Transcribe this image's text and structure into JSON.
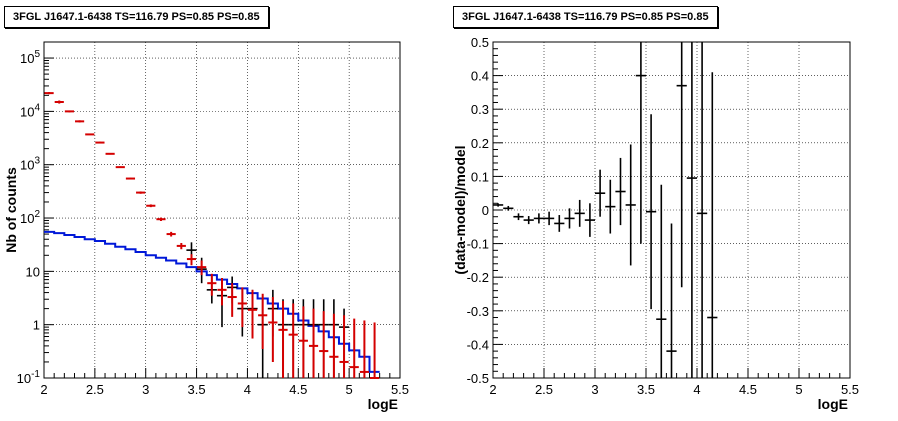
{
  "chart_data": [
    {
      "type": "line",
      "title": "3FGL J1647.1-6438 TS=116.79 PS=0.85 PS=0.85",
      "xlabel": "logE",
      "ylabel": "Nb of counts",
      "xlim": [
        2,
        5.5
      ],
      "ylim": [
        0.1,
        200000
      ],
      "yscale": "log",
      "grid": true,
      "xticks": [
        "2",
        "2.5",
        "3",
        "3.5",
        "4",
        "4.5",
        "5",
        "5.5"
      ],
      "yticks": [
        "10^-1",
        "1",
        "10",
        "10^2",
        "10^3",
        "10^4",
        "10^5"
      ],
      "colors": {
        "data": "#000000",
        "model": "#d40000",
        "background": "#0018d8"
      },
      "bin_edges": [
        2.0,
        2.1,
        2.2,
        2.3,
        2.4,
        2.5,
        2.6,
        2.7,
        2.8,
        2.9,
        3.0,
        3.1,
        3.2,
        3.3,
        3.4,
        3.5,
        3.6,
        3.7,
        3.8,
        3.9,
        4.0,
        4.1,
        4.2,
        4.3,
        4.4,
        4.5,
        4.6,
        4.7,
        4.8,
        4.9,
        5.0,
        5.1,
        5.2,
        5.3
      ],
      "series": [
        {
          "name": "data",
          "x": [
            3.45,
            3.55,
            3.65,
            3.75,
            3.85,
            3.95,
            4.05,
            4.15,
            4.25,
            4.35,
            4.45,
            4.55,
            4.65,
            4.75,
            4.85,
            4.95
          ],
          "y": [
            25,
            11,
            4.5,
            3.5,
            5,
            2,
            2,
            1,
            2,
            1,
            1,
            1,
            1,
            1,
            1,
            0.9
          ],
          "y_lo": [
            18,
            6,
            2.5,
            0.9,
            2.5,
            0.6,
            0.6,
            0.1,
            0.6,
            0.1,
            0.1,
            0.1,
            0.1,
            0.1,
            0.1,
            0.1
          ],
          "y_hi": [
            35,
            18,
            8,
            7,
            8,
            4.5,
            4.5,
            3,
            4.5,
            3,
            3,
            3,
            3,
            3,
            3,
            2
          ]
        },
        {
          "name": "model",
          "x": [
            2.05,
            2.15,
            2.25,
            2.35,
            2.45,
            2.55,
            2.65,
            2.75,
            2.85,
            2.95,
            3.05,
            3.15,
            3.25,
            3.35,
            3.45,
            3.55,
            3.65,
            3.75,
            3.85,
            3.95,
            4.05,
            4.15,
            4.25,
            4.35,
            4.45,
            4.55,
            4.65,
            4.75,
            4.85,
            4.95,
            5.05,
            5.15,
            5.25
          ],
          "y": [
            22000,
            15000,
            10000,
            6500,
            3700,
            2600,
            1600,
            900,
            550,
            300,
            170,
            95,
            50,
            30,
            17,
            12,
            6,
            4.5,
            3.3,
            2.5,
            1.9,
            1.5,
            1.1,
            0.8,
            0.65,
            0.5,
            0.4,
            0.32,
            0.25,
            0.2,
            0.16,
            0.13,
            0.1
          ],
          "y_lo": [
            21000,
            14000,
            9600,
            6200,
            3600,
            2500,
            1550,
            870,
            530,
            285,
            160,
            88,
            45,
            26,
            13,
            8.5,
            3.5,
            2.3,
            1.4,
            0.9,
            0.55,
            0.35,
            0.2,
            0.1,
            0.1,
            0.1,
            0.1,
            0.1,
            0.1,
            0.1,
            0.1,
            0.1,
            0.1
          ],
          "y_hi": [
            23000,
            16000,
            10400,
            6800,
            3800,
            2700,
            1650,
            930,
            570,
            315,
            180,
            102,
            55,
            34,
            21,
            16,
            9,
            7.5,
            6,
            5,
            4.5,
            3.8,
            3.3,
            2.8,
            2.5,
            2.2,
            2.0,
            1.8,
            1.6,
            1.5,
            1.3,
            1.2,
            1.1
          ]
        },
        {
          "name": "background",
          "x": [
            2.05,
            2.15,
            2.25,
            2.35,
            2.45,
            2.55,
            2.65,
            2.75,
            2.85,
            2.95,
            3.05,
            3.15,
            3.25,
            3.35,
            3.45,
            3.55,
            3.65,
            3.75,
            3.85,
            3.95,
            4.05,
            4.15,
            4.25,
            4.35,
            4.45,
            4.55,
            4.65,
            4.75,
            4.85,
            4.95,
            5.05,
            5.15,
            5.25
          ],
          "y": [
            55,
            52,
            48,
            44,
            40,
            37,
            33,
            29,
            26,
            23,
            20,
            18,
            16,
            14,
            12,
            10,
            8.5,
            7,
            5.8,
            4.8,
            3.9,
            3.1,
            2.5,
            2,
            1.6,
            1.2,
            0.95,
            0.75,
            0.58,
            0.44,
            0.33,
            0.25,
            0.13
          ]
        }
      ]
    },
    {
      "type": "scatter",
      "title": "3FGL J1647.1-6438 TS=116.79 PS=0.85 PS=0.85",
      "xlabel": "logE",
      "ylabel": "(data-model)/model",
      "xlim": [
        2,
        5.5
      ],
      "ylim": [
        -0.5,
        0.5
      ],
      "grid": true,
      "xticks": [
        "2",
        "2.5",
        "3",
        "3.5",
        "4",
        "4.5",
        "5",
        "5.5"
      ],
      "yticks": [
        "-0.5",
        "-0.4",
        "-0.3",
        "-0.2",
        "-0.1",
        "0",
        "0.1",
        "0.2",
        "0.3",
        "0.4",
        "0.5"
      ],
      "colors": {
        "data": "#000000"
      },
      "bin_half_width": 0.05,
      "series": [
        {
          "name": "residual",
          "x": [
            2.05,
            2.15,
            2.25,
            2.35,
            2.45,
            2.55,
            2.65,
            2.75,
            2.85,
            2.95,
            3.05,
            3.15,
            3.25,
            3.35,
            3.45,
            3.55,
            3.65,
            3.75,
            3.85,
            3.95,
            4.05,
            4.15
          ],
          "y": [
            0.015,
            0.005,
            -0.02,
            -0.03,
            -0.025,
            -0.025,
            -0.04,
            -0.025,
            -0.01,
            -0.03,
            0.05,
            0.01,
            0.055,
            0.015,
            0.4,
            -0.005,
            -0.325,
            -0.42,
            0.37,
            0.095,
            -0.01,
            -0.32
          ],
          "err": [
            0.005,
            0.007,
            0.01,
            0.012,
            0.015,
            0.02,
            0.025,
            0.03,
            0.04,
            0.05,
            0.07,
            0.08,
            0.1,
            0.18,
            0.5,
            0.29,
            0.4,
            0.38,
            0.6,
            0.7,
            0.6,
            0.73
          ]
        }
      ]
    }
  ]
}
